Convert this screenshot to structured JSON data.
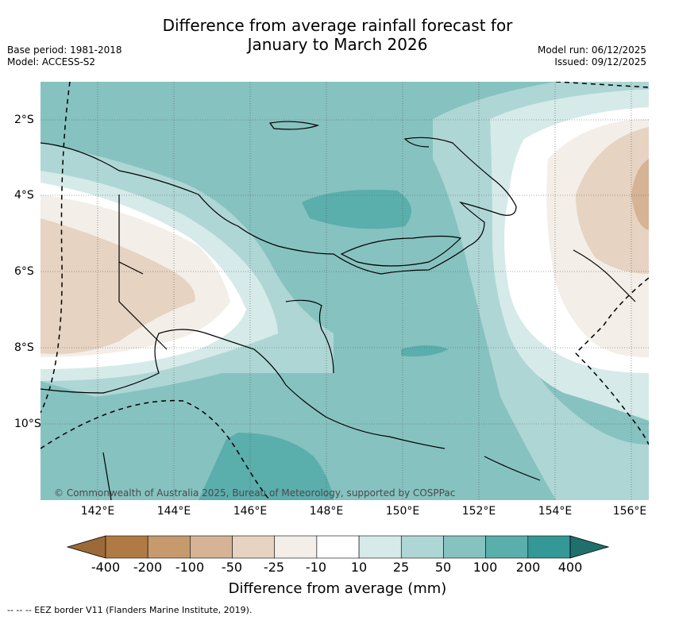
{
  "title_line1": "Difference from average rainfall forecast for",
  "title_line2": "January to March 2026",
  "meta": {
    "base_period": "Base period: 1981-2018",
    "model": "Model: ACCESS-S2",
    "model_run": "Model run: 06/12/2025",
    "issued": "Issued: 09/12/2025"
  },
  "map": {
    "x_ticks": [
      "142°E",
      "144°E",
      "146°E",
      "148°E",
      "150°E",
      "152°E",
      "154°E",
      "156°E"
    ],
    "y_ticks": [
      "2°S",
      "4°S",
      "6°S",
      "8°S",
      "10°S"
    ],
    "copyright": "© Commonwealth of Australia 2025, Bureau of Meteorology, supported by COSPPac"
  },
  "colorbar": {
    "title": "Difference from average (mm)",
    "labels": [
      "-400",
      "-200",
      "-100",
      "-50",
      "-25",
      "-10",
      "10",
      "25",
      "50",
      "100",
      "200",
      "400"
    ],
    "colors": [
      "#9c6a38",
      "#b07a45",
      "#c79a6e",
      "#d5b394",
      "#e6d3c2",
      "#f3eee8",
      "#ffffff",
      "#d5eae9",
      "#aed6d5",
      "#86c2c0",
      "#5aaeac",
      "#339896",
      "#1f6f6c"
    ]
  },
  "footnote": "-- -- -- EEZ border V11 (Flanders Marine Institute, 2019)."
}
